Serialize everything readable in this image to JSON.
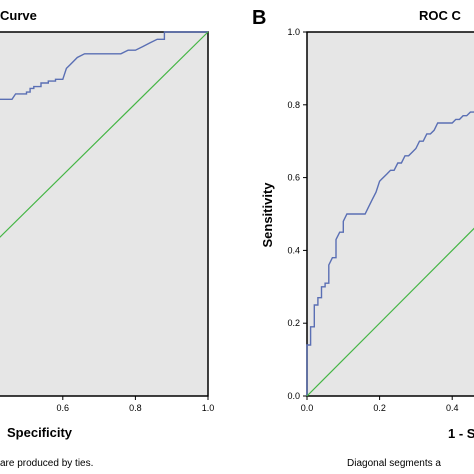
{
  "panel_a": {
    "title": "Curve",
    "xlabel": "Specificity",
    "footnote": "are produced by ties."
  },
  "panel_b": {
    "letter": "B",
    "title": "ROC C",
    "xlabel": "1 - S",
    "ylabel": "Sensitivity",
    "footnote": "Diagonal segments a"
  },
  "colors": {
    "roc": "#5a6fb4",
    "reference": "#44b544",
    "plot_background": "#e6e6e6"
  },
  "chart_data": [
    {
      "type": "line",
      "panel": "A",
      "title": "Curve",
      "xlabel": "Specificity",
      "ylabel": "",
      "xlim": [
        0,
        1
      ],
      "ylim": [
        0,
        1
      ],
      "x_ticks": [
        "0.6",
        "0.8",
        "1.0"
      ],
      "y_ticks": [],
      "series": [
        {
          "x": [
            0.42,
            0.44,
            0.46,
            0.47,
            0.48,
            0.49,
            0.5,
            0.5,
            0.51,
            0.51,
            0.52,
            0.52,
            0.54,
            0.54,
            0.56,
            0.56,
            0.58,
            0.58,
            0.6,
            0.61,
            0.62,
            0.63,
            0.64,
            0.66,
            0.68,
            0.7,
            0.72,
            0.74,
            0.76,
            0.78,
            0.8,
            0.82,
            0.84,
            0.86,
            0.88,
            0.88,
            0.9,
            1.0
          ],
          "y": [
            0.815,
            0.815,
            0.815,
            0.83,
            0.83,
            0.83,
            0.83,
            0.835,
            0.835,
            0.845,
            0.845,
            0.85,
            0.85,
            0.86,
            0.86,
            0.865,
            0.865,
            0.87,
            0.87,
            0.9,
            0.91,
            0.92,
            0.93,
            0.94,
            0.94,
            0.94,
            0.94,
            0.94,
            0.94,
            0.95,
            0.95,
            0.96,
            0.97,
            0.98,
            0.98,
            1.0,
            1.0,
            1.0
          ]
        },
        {
          "x": [
            0.42,
            1.0
          ],
          "y": [
            0.43,
            1.0
          ]
        }
      ]
    },
    {
      "type": "line",
      "panel": "B",
      "title": "ROC C",
      "xlabel": "1 - S",
      "ylabel": "Sensitivity",
      "xlim": [
        0,
        1
      ],
      "ylim": [
        0,
        1
      ],
      "x_ticks": [
        "0.0",
        "0.2",
        "0.4"
      ],
      "y_ticks": [
        "0.0",
        "0.2",
        "0.4",
        "0.6",
        "0.8",
        "1.0"
      ],
      "series": [
        {
          "x": [
            0.0,
            0.0,
            0.01,
            0.01,
            0.02,
            0.02,
            0.03,
            0.03,
            0.04,
            0.04,
            0.05,
            0.05,
            0.06,
            0.06,
            0.07,
            0.08,
            0.08,
            0.09,
            0.1,
            0.1,
            0.11,
            0.12,
            0.14,
            0.16,
            0.17,
            0.18,
            0.19,
            0.2,
            0.21,
            0.22,
            0.23,
            0.24,
            0.25,
            0.26,
            0.27,
            0.28,
            0.29,
            0.3,
            0.31,
            0.32,
            0.33,
            0.34,
            0.35,
            0.36,
            0.37,
            0.38,
            0.39,
            0.4,
            0.41,
            0.42,
            0.43,
            0.44,
            0.45,
            0.46,
            0.47,
            0.48,
            0.49
          ],
          "y": [
            0.0,
            0.14,
            0.14,
            0.19,
            0.19,
            0.25,
            0.25,
            0.27,
            0.27,
            0.3,
            0.3,
            0.31,
            0.31,
            0.36,
            0.38,
            0.38,
            0.43,
            0.45,
            0.45,
            0.48,
            0.5,
            0.5,
            0.5,
            0.5,
            0.52,
            0.54,
            0.56,
            0.59,
            0.6,
            0.61,
            0.62,
            0.62,
            0.64,
            0.64,
            0.66,
            0.66,
            0.67,
            0.68,
            0.7,
            0.7,
            0.72,
            0.72,
            0.73,
            0.75,
            0.75,
            0.75,
            0.75,
            0.75,
            0.76,
            0.76,
            0.77,
            0.77,
            0.78,
            0.78,
            0.79,
            0.79,
            0.8
          ]
        },
        {
          "x": [
            0.0,
            0.49
          ],
          "y": [
            0.0,
            0.49
          ]
        }
      ]
    }
  ]
}
